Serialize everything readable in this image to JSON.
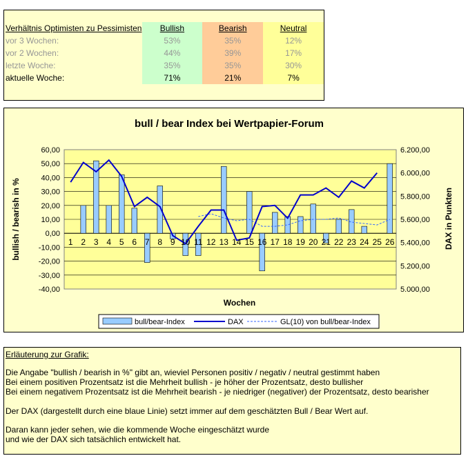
{
  "sentiment_table": {
    "title": "Verhältnis Optimisten zu Pessimisten",
    "columns": [
      "Bullish",
      "Bearish",
      "Neutral"
    ],
    "rows": [
      {
        "label": "vor 3 Wochen:",
        "values": [
          "53%",
          "35%",
          "12%"
        ]
      },
      {
        "label": "vor 2 Wochen:",
        "values": [
          "44%",
          "39%",
          "17%"
        ]
      },
      {
        "label": "letzte Woche:",
        "values": [
          "35%",
          "35%",
          "30%"
        ]
      },
      {
        "label": "aktuelle Woche:",
        "values": [
          "71%",
          "21%",
          "7%"
        ]
      }
    ]
  },
  "chart_data": {
    "type": "bar",
    "title": "bull / bear Index bei Wertpapier-Forum",
    "xlabel": "Wochen",
    "ylabel": "bullish / bearish in %",
    "y2label": "DAX in Punkten",
    "categories": [
      "1",
      "2",
      "3",
      "4",
      "5",
      "6",
      "7",
      "8",
      "9",
      "10",
      "11",
      "12",
      "13",
      "14",
      "15",
      "16",
      "17",
      "18",
      "19",
      "20",
      "21",
      "22",
      "23",
      "24",
      "25",
      "26"
    ],
    "ylim": [
      -40,
      60
    ],
    "y_ticks": [
      "60,00",
      "50,00",
      "40,00",
      "30,00",
      "20,00",
      "10,00",
      "0,00",
      "-10,00",
      "-20,00",
      "-30,00",
      "-40,00"
    ],
    "y2lim": [
      5000,
      6200
    ],
    "y2_ticks": [
      "6.200,00",
      "6.000,00",
      "5.800,00",
      "5.600,00",
      "5.400,00",
      "5.200,00",
      "5.000,00"
    ],
    "grid": true,
    "legend_position": "bottom",
    "series": [
      {
        "name": "bull/bear-Index",
        "type": "bar",
        "axis": "left",
        "color": "#99ccff",
        "values": [
          0,
          20,
          52,
          20,
          42,
          18,
          -21,
          34,
          -4,
          -16,
          -16,
          0,
          48,
          0,
          30,
          -27,
          15,
          12,
          12,
          21,
          -7,
          10,
          17,
          5,
          0,
          50
        ]
      },
      {
        "name": "DAX",
        "type": "line",
        "axis": "right",
        "color": "#0000cc",
        "values": [
          5920,
          6090,
          6010,
          6110,
          5970,
          5710,
          5790,
          5710,
          5460,
          5390,
          5540,
          5680,
          5680,
          5420,
          5440,
          5710,
          5720,
          5610,
          5810,
          5810,
          5870,
          5790,
          5930,
          5870,
          6000,
          null
        ]
      },
      {
        "name": "GL(10) von bull/bear-Index",
        "type": "line",
        "axis": "left",
        "dashed": true,
        "color": "#3366ff",
        "values": [
          null,
          null,
          null,
          null,
          null,
          null,
          null,
          null,
          null,
          null,
          12,
          14,
          11,
          9,
          10,
          5,
          5,
          6,
          9,
          10,
          10,
          11,
          8,
          7,
          6,
          10
        ]
      }
    ]
  },
  "notes": {
    "heading": "Erläuterung zur Grafik:",
    "lines": [
      "Die Angabe \"bullish / bearish in %\" gibt an, wieviel Personen positiv / negativ / neutral gestimmt haben",
      "Bei einem positiven Prozentsatz ist die Mehrheit bullish - je höher der Prozentsatz, desto bullisher",
      "Bei einem negativem Prozentsatz ist die Mehrheit bearish - je niedriger (negativer) der Prozentsatz, desto bearisher",
      "Der DAX (dargestellt durch eine blaue Linie) setzt immer auf dem geschätzten Bull / Bear Wert auf.",
      "Daran kann jeder sehen, wie die kommende Woche eingeschätzt wurde",
      "und wie der DAX sich tatsächlich entwickelt hat."
    ]
  }
}
